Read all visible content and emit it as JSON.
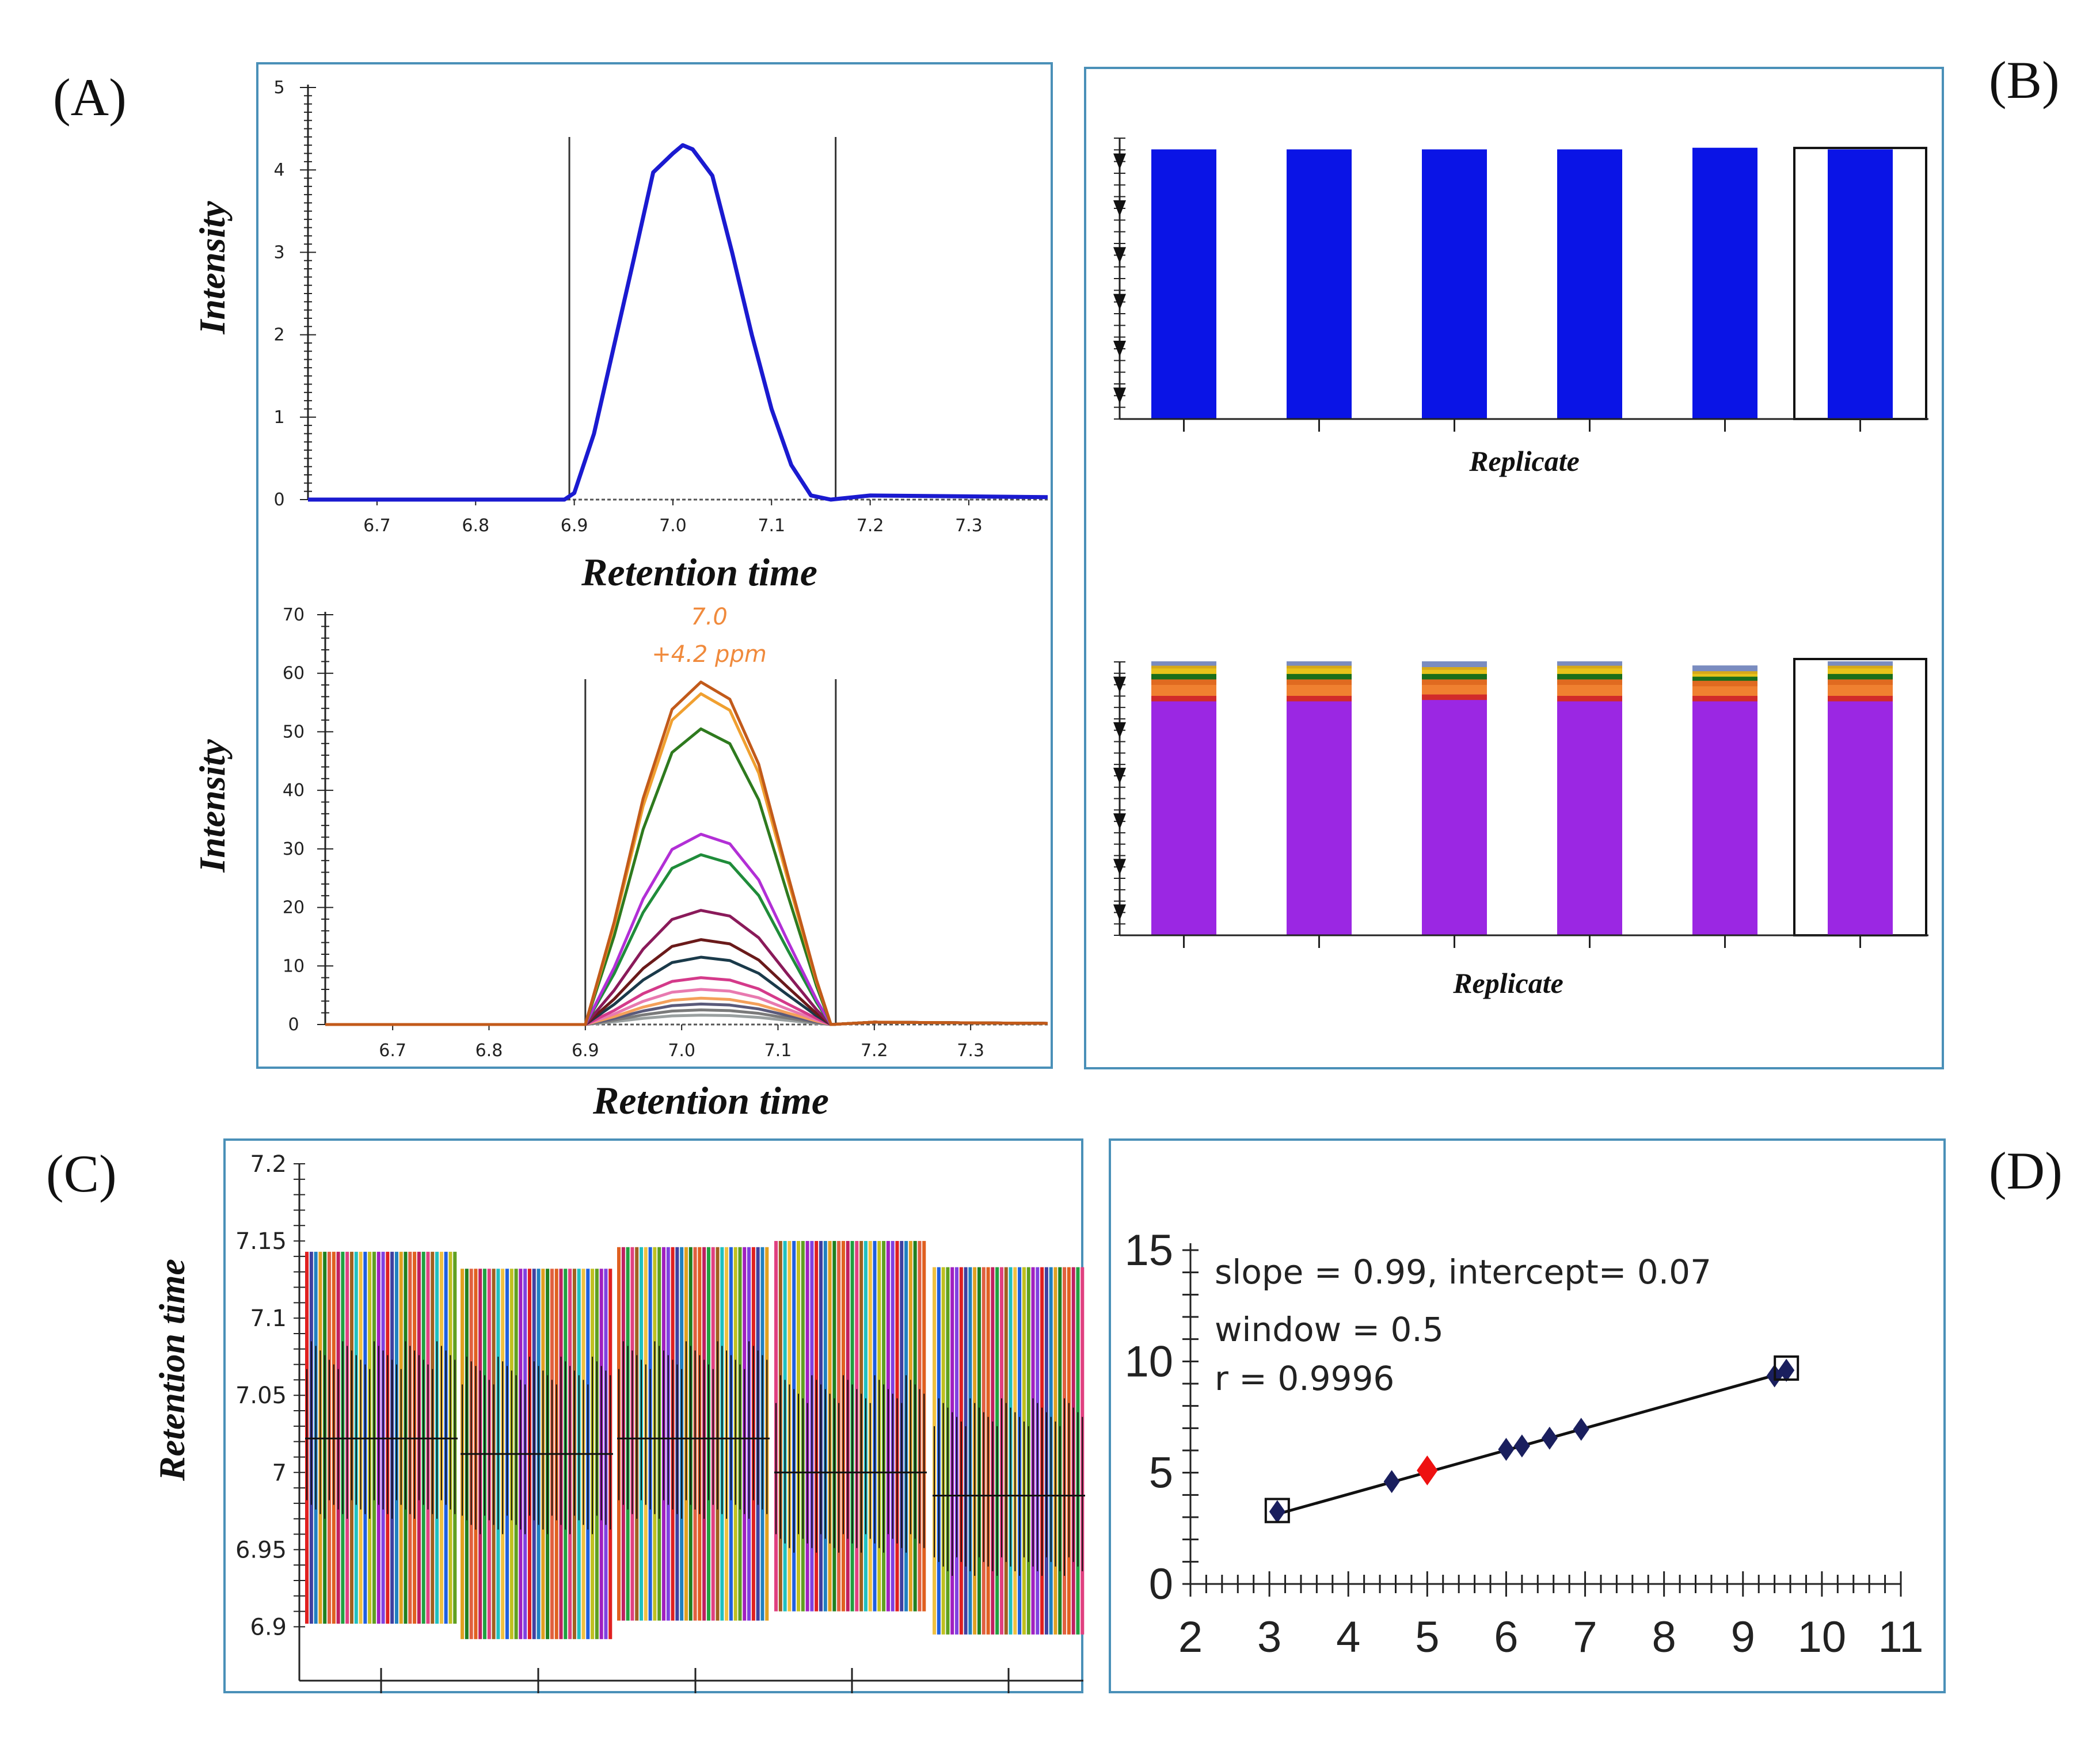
{
  "colors": {
    "panel_border": "#4a90b8",
    "blue": "#0a14e6",
    "purple": "#9b27e3",
    "peak_labels": "#f08a3c",
    "dark_navy": "#1a1f5e",
    "red_point": "#ee1111"
  },
  "panels": {
    "A": {
      "label": "(A)",
      "top_chart": {
        "type": "line",
        "ylabel": "Intensity",
        "xlabel": "Retention time",
        "x_ticks": [
          "6.7",
          "6.8",
          "6.9",
          "7.0",
          "7.1",
          "7.2",
          "7.3"
        ],
        "y_ticks": [
          "0",
          "1",
          "2",
          "3",
          "4",
          "5"
        ],
        "xlim": [
          6.63,
          7.38
        ],
        "ylim": [
          0,
          5
        ],
        "boundaries": [
          6.895,
          7.165
        ],
        "series": [
          {
            "color": "#1a1ad0",
            "x": [
              6.63,
              6.89,
              6.9,
              6.92,
              6.94,
              6.96,
              6.98,
              7.0,
              7.01,
              7.02,
              7.04,
              7.06,
              7.08,
              7.1,
              7.12,
              7.14,
              7.16,
              7.2,
              7.38
            ],
            "y": [
              0,
              0,
              0.08,
              0.8,
              1.85,
              2.9,
              3.97,
              4.2,
              4.3,
              4.25,
              3.93,
              3.0,
              2.0,
              1.1,
              0.42,
              0.05,
              0,
              0.05,
              0.03
            ]
          }
        ]
      },
      "bottom_chart": {
        "type": "line",
        "ylabel": "Intensity",
        "xlabel": "Retention time",
        "x_ticks": [
          "6.7",
          "6.8",
          "6.9",
          "7.0",
          "7.1",
          "7.2",
          "7.3"
        ],
        "y_ticks": [
          "0",
          "10",
          "20",
          "30",
          "40",
          "50",
          "60",
          "70"
        ],
        "xlim": [
          6.63,
          7.38
        ],
        "ylim": [
          0,
          70
        ],
        "boundaries": [
          6.9,
          7.16
        ],
        "peak_label_1": "7.0",
        "peak_label_2": "+4.2 ppm",
        "x_shape": [
          6.9,
          6.93,
          6.96,
          6.99,
          7.02,
          7.05,
          7.08,
          7.11,
          7.14,
          7.155
        ],
        "shape": [
          0,
          0.3,
          0.66,
          0.92,
          1.0,
          0.95,
          0.76,
          0.44,
          0.13,
          0
        ],
        "series": [
          {
            "color": "#c25a1a",
            "peak": 58.5
          },
          {
            "color": "#f0a030",
            "peak": 56.5
          },
          {
            "color": "#2e7a1e",
            "peak": 50.5
          },
          {
            "color": "#b22fd6",
            "peak": 32.5
          },
          {
            "color": "#1f8c3a",
            "peak": 29.0
          },
          {
            "color": "#8a1a5a",
            "peak": 19.5
          },
          {
            "color": "#6a1a1a",
            "peak": 14.5
          },
          {
            "color": "#1a3a4a",
            "peak": 11.5
          },
          {
            "color": "#d43a8a",
            "peak": 8.0
          },
          {
            "color": "#e87ab0",
            "peak": 6.0
          },
          {
            "color": "#f4a05a",
            "peak": 4.5
          },
          {
            "color": "#5a5a7a",
            "peak": 3.5
          },
          {
            "color": "#7a7a7a",
            "peak": 2.5
          },
          {
            "color": "#9aa0a0",
            "peak": 1.6
          }
        ]
      }
    },
    "B": {
      "label": "(B)",
      "top_chart": {
        "type": "bar",
        "xlabel": "Replicate",
        "bar_color": "#0a14e6",
        "values": [
          1.0,
          1.0,
          1.0,
          1.0,
          1.006,
          1.0
        ],
        "highlighted_index": 5
      },
      "bottom_chart": {
        "type": "bar",
        "xlabel": "Replicate",
        "highlighted_index": 5,
        "stack_colors": [
          "#9b27e3",
          "#d12a2a",
          "#f08030",
          "#e06a20",
          "#1a6e1a",
          "#e8c21a",
          "#d6a81a",
          "#7a8cc0"
        ],
        "stacks": [
          [
            0.855,
            0.02,
            0.04,
            0.02,
            0.02,
            0.02,
            0.01,
            0.015
          ],
          [
            0.855,
            0.02,
            0.04,
            0.02,
            0.02,
            0.02,
            0.01,
            0.015
          ],
          [
            0.86,
            0.02,
            0.035,
            0.02,
            0.02,
            0.015,
            0.01,
            0.02
          ],
          [
            0.855,
            0.02,
            0.04,
            0.02,
            0.02,
            0.02,
            0.01,
            0.015
          ],
          [
            0.855,
            0.02,
            0.035,
            0.02,
            0.015,
            0.01,
            0.01,
            0.02
          ],
          [
            0.855,
            0.02,
            0.04,
            0.02,
            0.02,
            0.02,
            0.01,
            0.015
          ]
        ]
      }
    },
    "C": {
      "label": "(C)",
      "type": "bar",
      "ylabel": "Retention time",
      "y_ticks": [
        "6.9",
        "6.95",
        "7",
        "7.05",
        "7.1",
        "7.15",
        "7.2"
      ],
      "ylim": [
        6.88,
        7.2
      ],
      "stripe_colors": [
        "#e02020",
        "#2060e0",
        "#20a040",
        "#e0a020",
        "#a020c0",
        "#20c0c0",
        "#e06020",
        "#4040a0",
        "#c0c020",
        "#e04080",
        "#208020",
        "#8040e0",
        "#f0c040",
        "#c02060",
        "#2080c0",
        "#60a020",
        "#a06020",
        "#e06040"
      ],
      "groups": [
        {
          "low": 6.902,
          "high": 7.143,
          "center": 7.022
        },
        {
          "low": 6.892,
          "high": 7.132,
          "center": 7.012
        },
        {
          "low": 6.904,
          "high": 7.146,
          "center": 7.022
        },
        {
          "low": 6.91,
          "high": 7.15,
          "center": 7.0
        },
        {
          "low": 6.895,
          "high": 7.133,
          "center": 6.985
        }
      ]
    },
    "D": {
      "label": "(D)",
      "type": "scatter",
      "x_ticks": [
        "2",
        "3",
        "4",
        "5",
        "6",
        "7",
        "8",
        "9",
        "10",
        "11"
      ],
      "y_ticks": [
        "0",
        "5",
        "10",
        "15"
      ],
      "xlim": [
        2,
        11
      ],
      "ylim": [
        0,
        15
      ],
      "annotation_1": "slope = 0.99, intercept= 0.07",
      "annotation_2": "window = 0.5",
      "annotation_3": "r = 0.9996",
      "regression": {
        "slope": 0.99,
        "intercept": 0.07
      },
      "points": [
        {
          "x": 3.1,
          "y": 3.25
        },
        {
          "x": 4.55,
          "y": 4.6
        },
        {
          "x": 6.0,
          "y": 6.05
        },
        {
          "x": 6.2,
          "y": 6.2
        },
        {
          "x": 6.55,
          "y": 6.55
        },
        {
          "x": 6.95,
          "y": 6.95
        },
        {
          "x": 9.4,
          "y": 9.35
        },
        {
          "x": 9.55,
          "y": 9.6
        }
      ],
      "red_point": {
        "x": 5.0,
        "y": 5.1
      },
      "boxed_points": [
        {
          "x": 3.1,
          "y": 3.3
        },
        {
          "x": 9.55,
          "y": 9.7
        }
      ]
    }
  }
}
